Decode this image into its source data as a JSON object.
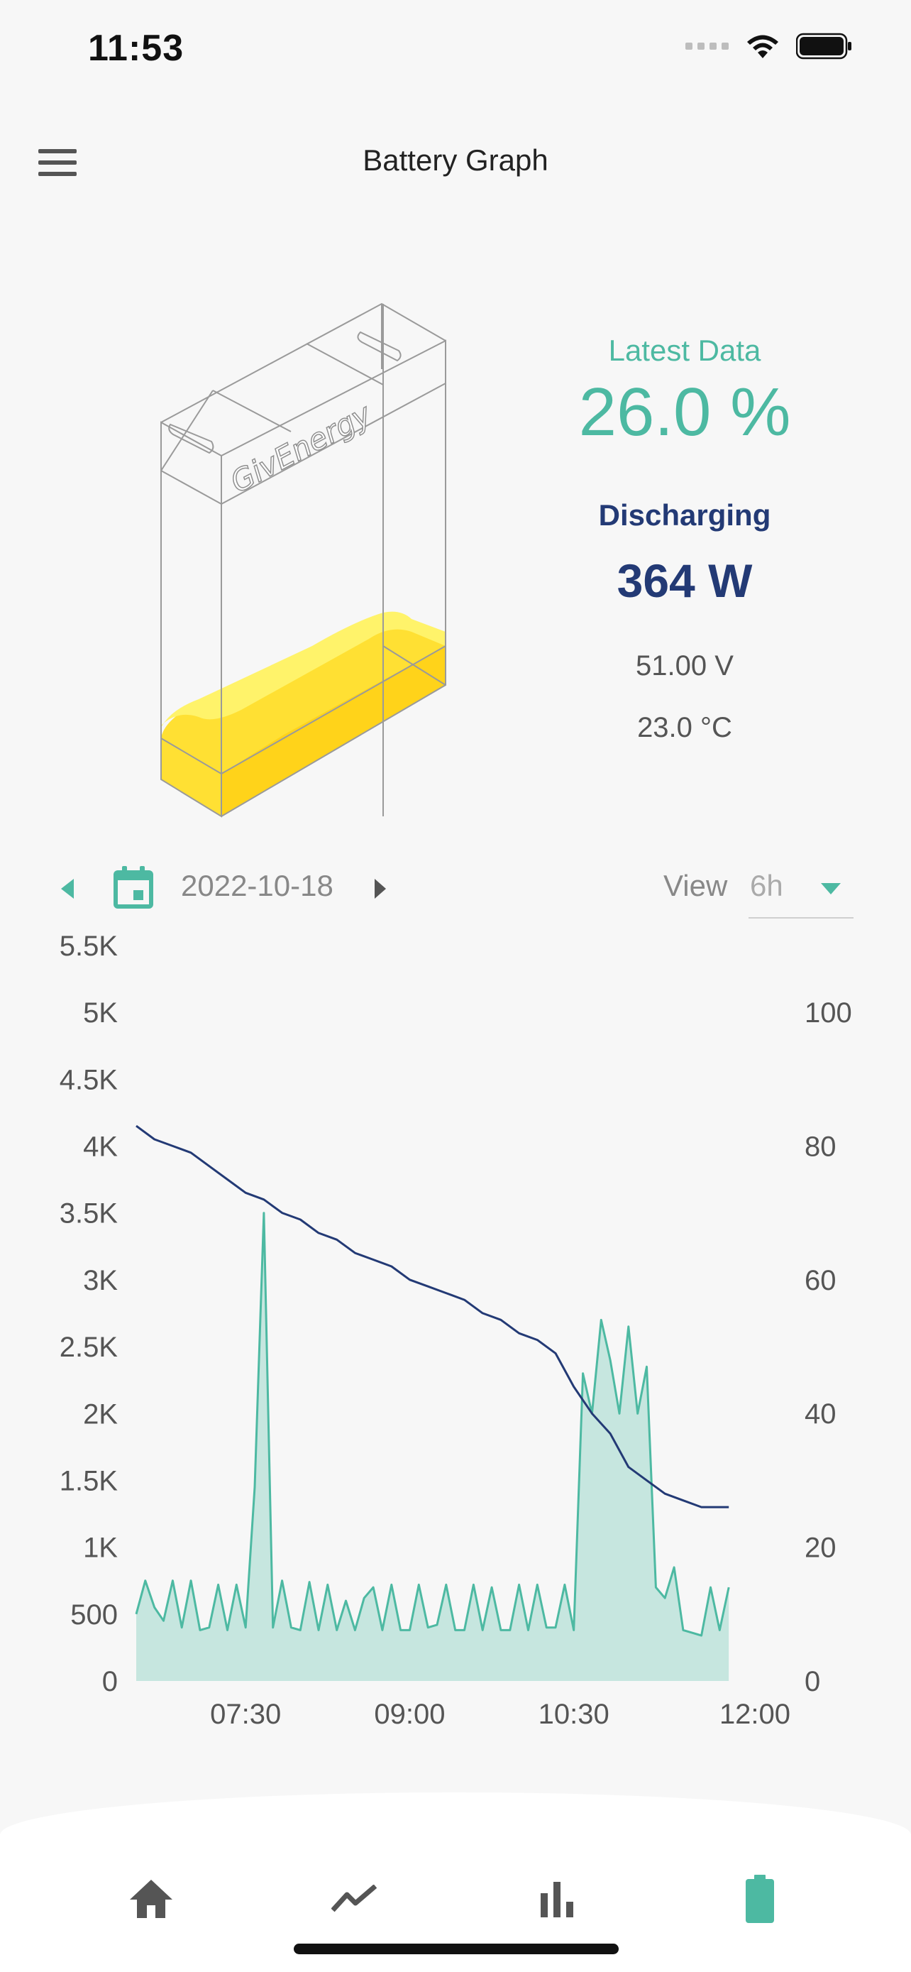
{
  "status_bar": {
    "time": "11:53"
  },
  "header": {
    "title": "Battery Graph"
  },
  "battery": {
    "brand": "GivEnergy",
    "latest_label": "Latest Data",
    "latest_value": "26.0 %",
    "state": "Discharging",
    "power": "364 W",
    "voltage": "51.00 V",
    "temperature": "23.0 °C",
    "fill_level_percent": 26
  },
  "date_nav": {
    "date": "2022-10-18",
    "view_label": "View",
    "view_value": "6h"
  },
  "colors": {
    "accent": "#4db9a2",
    "navy": "#233a75",
    "fill": "#c6e6df",
    "battery_yellow": "#ffe033"
  },
  "chart_data": {
    "type": "line",
    "x_ticks": [
      "07:30",
      "09:00",
      "10:30",
      "12:00"
    ],
    "y_left_ticks": [
      "0",
      "500",
      "1K",
      "1.5K",
      "2K",
      "2.5K",
      "3K",
      "3.5K",
      "4K",
      "4.5K",
      "5K",
      "5.5K"
    ],
    "y_right_ticks": [
      "0",
      "20",
      "40",
      "60",
      "80",
      "100"
    ],
    "y_left_range": [
      0,
      5500
    ],
    "y_right_range": [
      0,
      100
    ],
    "x_range": [
      "06:30",
      "12:00"
    ],
    "grid": false,
    "series": [
      {
        "axis": "left",
        "style": "area",
        "x": [
          "06:30",
          "06:35",
          "06:40",
          "06:45",
          "06:50",
          "06:55",
          "07:00",
          "07:05",
          "07:10",
          "07:15",
          "07:20",
          "07:25",
          "07:30",
          "07:35",
          "07:40",
          "07:45",
          "07:50",
          "07:55",
          "08:00",
          "08:05",
          "08:10",
          "08:15",
          "08:20",
          "08:25",
          "08:30",
          "08:35",
          "08:40",
          "08:45",
          "08:50",
          "08:55",
          "09:00",
          "09:05",
          "09:10",
          "09:15",
          "09:20",
          "09:25",
          "09:30",
          "09:35",
          "09:40",
          "09:45",
          "09:50",
          "09:55",
          "10:00",
          "10:05",
          "10:10",
          "10:15",
          "10:20",
          "10:25",
          "10:30",
          "10:35",
          "10:40",
          "10:45",
          "10:50",
          "10:55",
          "11:00",
          "11:05",
          "11:10",
          "11:15",
          "11:20",
          "11:25",
          "11:30",
          "11:35",
          "11:40",
          "11:45",
          "11:50",
          "11:55"
        ],
        "values": [
          500,
          750,
          550,
          450,
          750,
          400,
          750,
          380,
          400,
          720,
          380,
          720,
          400,
          1450,
          3500,
          400,
          750,
          400,
          380,
          740,
          380,
          720,
          380,
          600,
          380,
          620,
          700,
          380,
          720,
          380,
          380,
          720,
          400,
          420,
          720,
          380,
          380,
          720,
          380,
          700,
          380,
          380,
          720,
          380,
          720,
          400,
          400,
          720,
          380,
          2300,
          2000,
          2700,
          2400,
          2000,
          2650,
          2000,
          2350,
          700,
          620,
          850,
          380,
          360,
          340,
          700,
          380,
          700
        ]
      },
      {
        "axis": "right",
        "style": "line",
        "x": [
          "06:30",
          "06:40",
          "06:50",
          "07:00",
          "07:10",
          "07:20",
          "07:30",
          "07:40",
          "07:50",
          "08:00",
          "08:10",
          "08:20",
          "08:30",
          "08:40",
          "08:50",
          "09:00",
          "09:10",
          "09:20",
          "09:30",
          "09:40",
          "09:50",
          "10:00",
          "10:10",
          "10:20",
          "10:30",
          "10:40",
          "10:50",
          "11:00",
          "11:10",
          "11:20",
          "11:30",
          "11:40",
          "11:50",
          "11:55"
        ],
        "values": [
          83,
          81,
          80,
          79,
          77,
          75,
          73,
          72,
          70,
          69,
          67,
          66,
          64,
          63,
          62,
          60,
          59,
          58,
          57,
          55,
          54,
          52,
          51,
          49,
          44,
          40,
          37,
          32,
          30,
          28,
          27,
          26,
          26,
          26
        ]
      }
    ]
  }
}
